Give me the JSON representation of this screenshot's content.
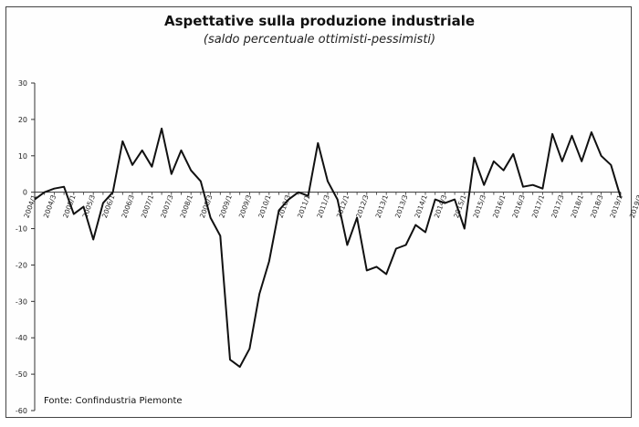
{
  "chart_data": {
    "type": "line",
    "title": "Aspettative sulla produzione industriale",
    "subtitle": "(saldo percentuale ottimisti-pessimisti)",
    "source": "Fonte: Confindustria Piemonte",
    "xlabel": "",
    "ylabel": "",
    "ylim": [
      -60,
      30
    ],
    "yticks": [
      30,
      20,
      10,
      0,
      -10,
      -20,
      -30,
      -40,
      -50,
      -60
    ],
    "grid": false,
    "legend": "none",
    "x_tick_labels": [
      "2004/1",
      "2004/3",
      "2005/1",
      "2005/3",
      "2006/1",
      "2006/3",
      "2007/1",
      "2007/3",
      "2008/1",
      "2008/3",
      "2009/1",
      "2009/3",
      "2010/1",
      "2010/3",
      "2011/1",
      "2011/3",
      "2012/1",
      "2012/3",
      "2013/1",
      "2013/3",
      "2014/1",
      "2014/3",
      "2015/1",
      "2015/3",
      "2016/1",
      "2016/3",
      "2017/1",
      "2017/3",
      "2018/1",
      "2018/3",
      "2019/1",
      "2019/3"
    ],
    "series": [
      {
        "color": "#111111",
        "values": [
          -2,
          0,
          1,
          1.5,
          -6,
          -4,
          -13,
          -3,
          0,
          14,
          7.5,
          11.5,
          7,
          17.5,
          5,
          11.5,
          6,
          3,
          -7,
          -12,
          -46,
          -48,
          -43,
          -28,
          -19,
          -5,
          -2,
          0,
          -1,
          13.5,
          3,
          -2,
          -14.5,
          -7,
          -21.5,
          -20.5,
          -22.5,
          -15.5,
          -14.5,
          -9,
          -11,
          -2,
          -3,
          -2,
          -10,
          9.5,
          2,
          8.5,
          6,
          10.5,
          1.5,
          2,
          1,
          16,
          8.5,
          15.5,
          8.5,
          16.5,
          10,
          7.5,
          -1.5
        ]
      }
    ]
  }
}
